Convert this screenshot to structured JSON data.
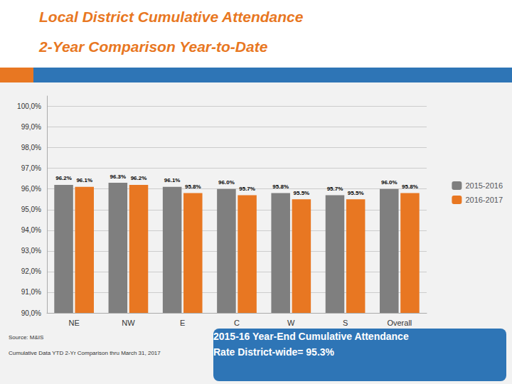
{
  "chart_data": {
    "type": "bar",
    "title": "Local District Cumulative Attendance",
    "subtitle": "2-Year Comparison Year-to-Date",
    "categories": [
      "NE",
      "NW",
      "E",
      "C",
      "W",
      "S",
      "Overall"
    ],
    "series": [
      {
        "name": "2015-2016",
        "color": "#7F7F7F",
        "values": [
          96.2,
          96.3,
          96.1,
          96.0,
          95.8,
          95.7,
          96.0
        ],
        "value_labels": [
          "96.2%",
          "96.3%",
          "96.1%",
          "96.0%",
          "95.8%",
          "95.7%",
          "96.0%"
        ]
      },
      {
        "name": "2016-2017",
        "color": "#E87722",
        "values": [
          96.1,
          96.2,
          95.8,
          95.7,
          95.5,
          95.5,
          95.8
        ],
        "value_labels": [
          "96.1%",
          "96.2%",
          "95.8%",
          "95.7%",
          "95.5%",
          "95.5%",
          "95.8%"
        ]
      }
    ],
    "ylim": [
      90.0,
      100.5
    ],
    "yticks": [
      {
        "value": 90.0,
        "label": "90,0%"
      },
      {
        "value": 91.0,
        "label": "91,0%"
      },
      {
        "value": 92.0,
        "label": "92,0%"
      },
      {
        "value": 93.0,
        "label": "93,0%"
      },
      {
        "value": 94.0,
        "label": "94,0%"
      },
      {
        "value": 95.0,
        "label": "95,0%"
      },
      {
        "value": 96.0,
        "label": "96,0%"
      },
      {
        "value": 97.0,
        "label": "97,0%"
      },
      {
        "value": 98.0,
        "label": "98,0%"
      },
      {
        "value": 99.0,
        "label": "99,0%"
      },
      {
        "value": 100.0,
        "label": "100,0%"
      }
    ],
    "grid": true,
    "legend": "right",
    "data_labels": true,
    "annotations": [
      "Source: M&IS",
      "Cumulative Data YTD 2-Yr Comparison thru March 31, 2017",
      "2015-16 Year-End Cumulative Attendance\nRate District-wide= 95.3%"
    ]
  }
}
